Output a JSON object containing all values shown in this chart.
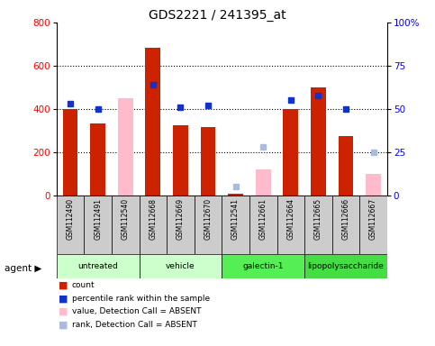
{
  "title": "GDS2221 / 241395_at",
  "samples": [
    "GSM112490",
    "GSM112491",
    "GSM112540",
    "GSM112668",
    "GSM112669",
    "GSM112670",
    "GSM112541",
    "GSM112661",
    "GSM112664",
    "GSM112665",
    "GSM112666",
    "GSM112667"
  ],
  "count_values": [
    400,
    335,
    null,
    685,
    325,
    315,
    10,
    null,
    400,
    500,
    275,
    null
  ],
  "rank_pct": [
    53,
    50,
    null,
    64,
    51,
    52,
    null,
    null,
    55,
    58,
    50,
    null
  ],
  "absent_count": [
    null,
    null,
    450,
    null,
    null,
    null,
    null,
    120,
    null,
    null,
    null,
    100
  ],
  "absent_rank_pct": [
    null,
    null,
    null,
    null,
    null,
    null,
    5,
    28,
    null,
    null,
    null,
    25
  ],
  "ylim_left": [
    0,
    800
  ],
  "ylim_right": [
    0,
    100
  ],
  "yticks_left": [
    0,
    200,
    400,
    600,
    800
  ],
  "yticks_right": [
    0,
    25,
    50,
    75,
    100
  ],
  "bar_color_red": "#cc2200",
  "bar_color_pink": "#ffbbcc",
  "dot_color_blue": "#1133cc",
  "dot_color_lightblue": "#aabbdd",
  "group_data": [
    {
      "label": "untreated",
      "color": "#ccffcc",
      "start": 0,
      "end": 2
    },
    {
      "label": "vehicle",
      "color": "#ccffcc",
      "start": 3,
      "end": 5
    },
    {
      "label": "galectin-1",
      "color": "#55ee55",
      "start": 6,
      "end": 8
    },
    {
      "label": "lipopolysaccharide",
      "color": "#44dd44",
      "start": 9,
      "end": 11
    }
  ],
  "legend_items": [
    {
      "label": "count",
      "color": "#cc2200"
    },
    {
      "label": "percentile rank within the sample",
      "color": "#1133cc"
    },
    {
      "label": "value, Detection Call = ABSENT",
      "color": "#ffbbcc"
    },
    {
      "label": "rank, Detection Call = ABSENT",
      "color": "#aabbdd"
    }
  ]
}
